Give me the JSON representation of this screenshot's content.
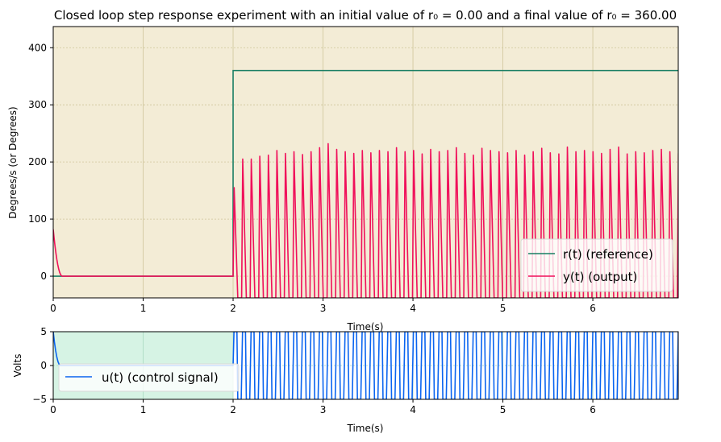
{
  "chart_data": [
    {
      "type": "line",
      "title": "Closed loop step response experiment with an initial value of  r₀ = 0.00 and a  final value of r₀ = 360.00",
      "xlabel": "Time(s)",
      "ylabel": "Degrees/s (or Degrees)",
      "xlim": [
        0,
        6.95
      ],
      "ylim": [
        -38,
        437
      ],
      "xticks": [
        0,
        1,
        2,
        3,
        4,
        5,
        6
      ],
      "xtick_labels": [
        "0",
        "1",
        "2",
        "3",
        "4",
        "5",
        "6"
      ],
      "yticks": [
        0,
        100,
        200,
        300,
        400
      ],
      "ytick_labels": [
        "0",
        "100",
        "200",
        "300",
        "400"
      ],
      "grid": true,
      "background": "#f3ecd6",
      "grid_color": "#cfc59a",
      "legend_position": "lower-right",
      "series": [
        {
          "name": "r(t) (reference)",
          "color": "#1a7f64",
          "step": {
            "t_step": 2.0,
            "initial": 0.0,
            "final": 360.0
          }
        },
        {
          "name": "y(t) (output)",
          "color": "#f0105a",
          "initial_decay": {
            "start_value": 82,
            "end_time": 0.1
          },
          "oscillation": {
            "start_time": 2.0,
            "period": 0.095,
            "min_value": -38,
            "peaks": [
              155,
              205,
              205,
              210,
              212,
              220,
              215,
              218,
              213,
              218,
              225,
              232,
              222,
              218,
              215,
              220,
              216,
              220,
              218,
              225,
              218,
              220,
              214,
              222,
              218,
              220,
              225,
              215,
              212,
              224,
              220,
              218,
              216,
              220,
              212,
              218,
              224,
              216,
              214,
              226,
              218,
              220,
              218,
              215,
              222,
              226,
              214,
              218,
              216,
              220,
              222,
              218,
              215,
              216,
              222,
              214,
              218,
              212,
              175
            ]
          }
        }
      ]
    },
    {
      "type": "line",
      "xlabel": "Time(s)",
      "ylabel": "Volts",
      "xlim": [
        0,
        6.95
      ],
      "ylim": [
        -5,
        5
      ],
      "xticks": [
        0,
        1,
        2,
        3,
        4,
        5,
        6
      ],
      "xtick_labels": [
        "0",
        "1",
        "2",
        "3",
        "4",
        "5",
        "6"
      ],
      "yticks": [
        -5,
        0,
        5
      ],
      "ytick_labels": [
        "−5",
        "0",
        "5"
      ],
      "grid": true,
      "background": "#d6f3e4",
      "grid_color": "#a9d9c0",
      "legend_position": "center-left",
      "series": [
        {
          "name": "u(t) (control signal)",
          "color": "#0a64f0",
          "initial_decay": {
            "start_value": 5,
            "end_time": 0.08
          },
          "oscillation": {
            "start_time": 2.0,
            "period": 0.095,
            "max_value": 5,
            "min_value": -5
          }
        }
      ]
    }
  ]
}
